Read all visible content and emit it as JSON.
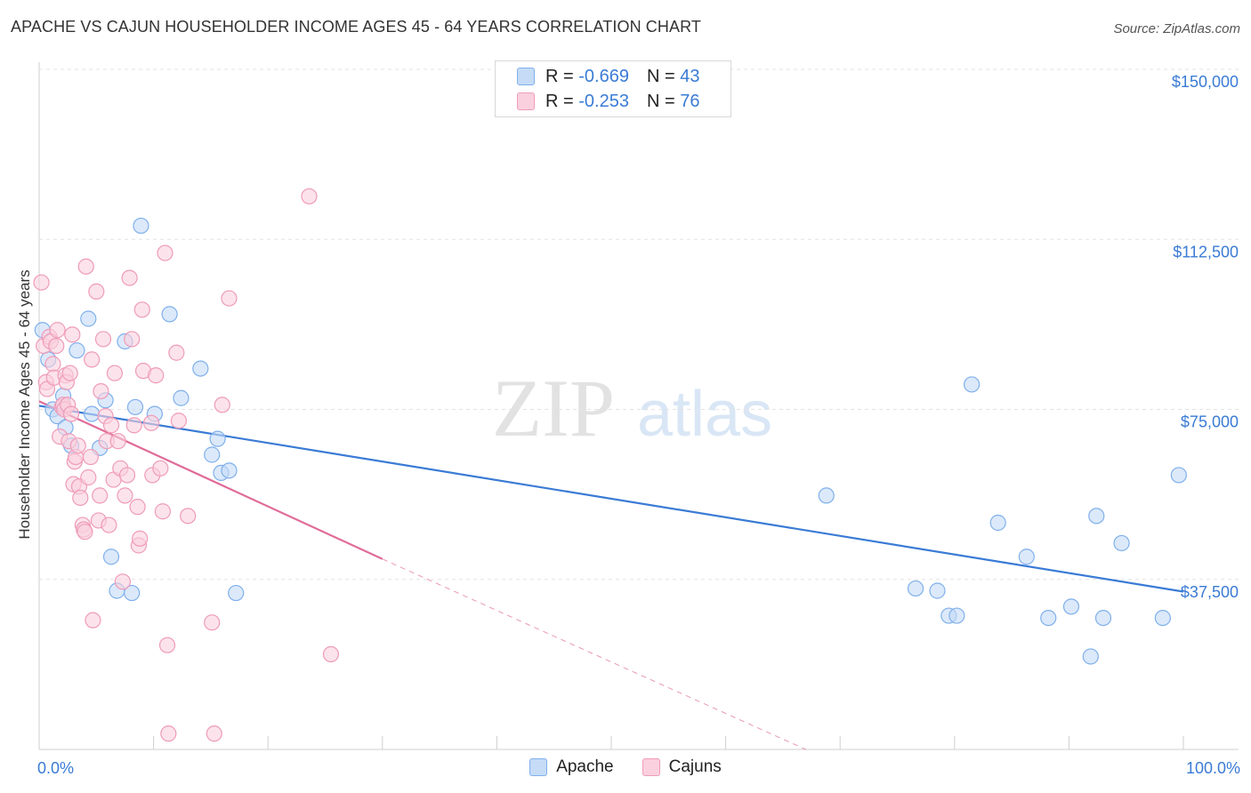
{
  "title": "APACHE VS CAJUN HOUSEHOLDER INCOME AGES 45 - 64 YEARS CORRELATION CHART",
  "source": "Source: ZipAtlas.com",
  "watermark": {
    "zip": "ZIP",
    "atlas": "atlas"
  },
  "legend": {
    "rows": [
      {
        "r_label": "R = ",
        "r_value": "-0.669",
        "n_label": "N = ",
        "n_value": "43",
        "color": "#7fb0ec",
        "fill": "#c5dbf6"
      },
      {
        "r_label": "R = ",
        "r_value": "-0.253",
        "n_label": "N = ",
        "n_value": "76",
        "color": "#ef9bb8",
        "fill": "#fad0de"
      }
    ]
  },
  "bottom_legend": {
    "apache": "Apache",
    "cajuns": "Cajuns"
  },
  "chart_data": {
    "type": "scatter",
    "title": "APACHE VS CAJUN HOUSEHOLDER INCOME AGES 45 - 64 YEARS CORRELATION CHART",
    "xlabel": "",
    "ylabel": "Householder Income Ages 45 - 64 years",
    "x_tick_labels": [
      "0.0%",
      "100.0%"
    ],
    "y_tick_labels": [
      "$37,500",
      "$75,000",
      "$112,500",
      "$150,000"
    ],
    "y_ticks": [
      37500,
      75000,
      112500,
      150000
    ],
    "xlim": [
      0,
      100
    ],
    "ylim": [
      0,
      155000
    ],
    "grid": true,
    "legend_position": "top-center",
    "series": [
      {
        "name": "Apache",
        "color": "#3a7bd5",
        "point_fill": "#c5dbf6",
        "point_stroke": "#7fb0ec",
        "trend": {
          "x0": 0,
          "y0": 75800,
          "x1": 100,
          "y1": 34800
        },
        "points": [
          [
            0.3,
            92500
          ],
          [
            0.8,
            86000
          ],
          [
            1.2,
            75000
          ],
          [
            1.6,
            73500
          ],
          [
            2.1,
            78000
          ],
          [
            2.3,
            71000
          ],
          [
            2.8,
            67000
          ],
          [
            3.3,
            88000
          ],
          [
            4.3,
            95000
          ],
          [
            4.6,
            74000
          ],
          [
            5.3,
            66500
          ],
          [
            5.8,
            77000
          ],
          [
            6.3,
            42500
          ],
          [
            6.8,
            35000
          ],
          [
            7.5,
            90000
          ],
          [
            8.1,
            34500
          ],
          [
            8.4,
            75500
          ],
          [
            8.9,
            115500
          ],
          [
            10.1,
            74000
          ],
          [
            11.4,
            96000
          ],
          [
            12.4,
            77500
          ],
          [
            14.1,
            84000
          ],
          [
            15.1,
            65000
          ],
          [
            15.6,
            68500
          ],
          [
            15.9,
            61000
          ],
          [
            16.6,
            61500
          ],
          [
            17.2,
            34500
          ],
          [
            68.8,
            56000
          ],
          [
            76.6,
            35500
          ],
          [
            78.5,
            35000
          ],
          [
            79.5,
            29500
          ],
          [
            80.2,
            29500
          ],
          [
            81.5,
            80500
          ],
          [
            83.8,
            50000
          ],
          [
            86.3,
            42500
          ],
          [
            88.2,
            29000
          ],
          [
            90.2,
            31500
          ],
          [
            91.9,
            20500
          ],
          [
            92.4,
            51500
          ],
          [
            93.0,
            29000
          ],
          [
            94.6,
            45500
          ],
          [
            98.2,
            29000
          ],
          [
            99.6,
            60500
          ]
        ]
      },
      {
        "name": "Cajuns",
        "color": "#e06b98",
        "point_fill": "#fad0de",
        "point_stroke": "#ef9bb8",
        "trend": {
          "x0": 0,
          "y0": 76800,
          "x1": 30,
          "y1": 42000
        },
        "trend_dash": {
          "x0": 30,
          "y0": 42000,
          "x1": 67,
          "y1": 0
        },
        "points": [
          [
            0.2,
            103000
          ],
          [
            0.4,
            89000
          ],
          [
            0.6,
            81000
          ],
          [
            0.7,
            79500
          ],
          [
            0.9,
            91000
          ],
          [
            1.0,
            90000
          ],
          [
            1.2,
            85000
          ],
          [
            1.3,
            82000
          ],
          [
            1.5,
            89000
          ],
          [
            1.6,
            92500
          ],
          [
            1.8,
            69000
          ],
          [
            2.0,
            75500
          ],
          [
            2.1,
            76000
          ],
          [
            2.2,
            75000
          ],
          [
            2.3,
            82500
          ],
          [
            2.4,
            81000
          ],
          [
            2.5,
            76000
          ],
          [
            2.6,
            68000
          ],
          [
            2.7,
            83000
          ],
          [
            2.9,
            91500
          ],
          [
            3.0,
            58500
          ],
          [
            3.1,
            63500
          ],
          [
            3.2,
            64500
          ],
          [
            3.4,
            67000
          ],
          [
            3.5,
            58000
          ],
          [
            3.6,
            55500
          ],
          [
            3.8,
            49500
          ],
          [
            3.9,
            48500
          ],
          [
            4.0,
            48000
          ],
          [
            4.1,
            106500
          ],
          [
            4.3,
            60000
          ],
          [
            4.5,
            64500
          ],
          [
            4.6,
            86000
          ],
          [
            4.7,
            28500
          ],
          [
            5.0,
            101000
          ],
          [
            5.2,
            50500
          ],
          [
            5.3,
            56000
          ],
          [
            5.4,
            79000
          ],
          [
            5.6,
            90500
          ],
          [
            5.8,
            73500
          ],
          [
            5.9,
            68000
          ],
          [
            6.1,
            49500
          ],
          [
            6.3,
            71500
          ],
          [
            6.5,
            59500
          ],
          [
            6.9,
            68000
          ],
          [
            7.1,
            62000
          ],
          [
            7.3,
            37000
          ],
          [
            7.5,
            56000
          ],
          [
            7.7,
            60500
          ],
          [
            7.9,
            104000
          ],
          [
            8.1,
            90500
          ],
          [
            8.3,
            71500
          ],
          [
            8.6,
            53500
          ],
          [
            8.7,
            45000
          ],
          [
            8.8,
            46500
          ],
          [
            9.0,
            97000
          ],
          [
            9.1,
            83500
          ],
          [
            9.8,
            72000
          ],
          [
            9.9,
            60500
          ],
          [
            10.2,
            82500
          ],
          [
            10.6,
            62000
          ],
          [
            10.8,
            52500
          ],
          [
            11.0,
            109500
          ],
          [
            11.2,
            23000
          ],
          [
            11.3,
            3500
          ],
          [
            12.0,
            87500
          ],
          [
            12.2,
            72500
          ],
          [
            13.0,
            51500
          ],
          [
            15.1,
            28000
          ],
          [
            15.3,
            3500
          ],
          [
            16.0,
            76000
          ],
          [
            16.6,
            99500
          ],
          [
            23.6,
            122000
          ],
          [
            25.5,
            21000
          ],
          [
            6.6,
            83000
          ],
          [
            2.8,
            74000
          ]
        ]
      }
    ]
  }
}
